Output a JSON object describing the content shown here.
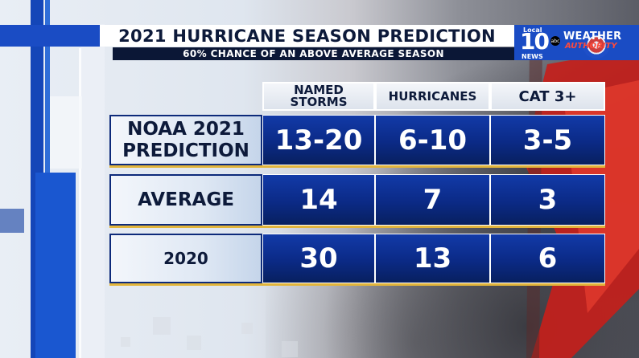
{
  "header": {
    "title": "2021 HURRICANE SEASON PREDICTION",
    "subtitle": "60% CHANCE OF AN ABOVE AVERAGE SEASON"
  },
  "logo": {
    "local": "Local",
    "number": "10",
    "news": "NEWS",
    "network": "abc",
    "weather": "WEATHER",
    "authority": "AUTHORITY"
  },
  "table": {
    "columns": [
      "NAMED STORMS",
      "HURRICANES",
      "CAT 3+"
    ],
    "rows": [
      {
        "label": "NOAA 2021 PREDICTION",
        "values": [
          "13-20",
          "6-10",
          "3-5"
        ]
      },
      {
        "label": "AVERAGE",
        "values": [
          "14",
          "7",
          "3"
        ]
      },
      {
        "label": "2020",
        "values": [
          "30",
          "13",
          "6"
        ]
      }
    ]
  },
  "colors": {
    "accent_blue": "#1a4cc4",
    "cell_blue": "#0b2a86",
    "gold_line": "#e2b53b",
    "title_text": "#0d1a3a",
    "alert_red": "#e23b2d"
  }
}
